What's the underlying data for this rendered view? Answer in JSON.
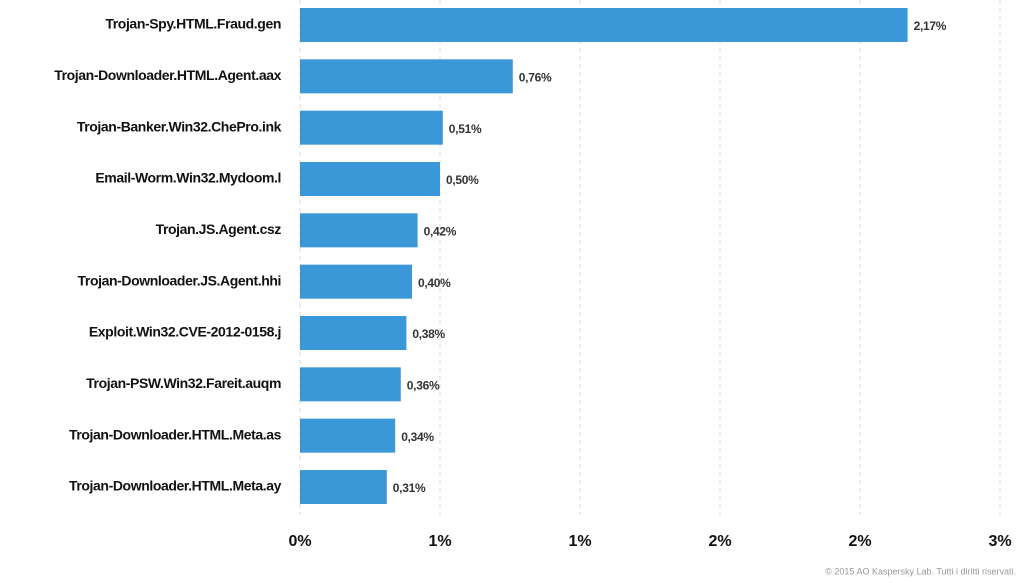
{
  "chart_data": {
    "type": "barh",
    "categories": [
      "Trojan-Spy.HTML.Fraud.gen",
      "Trojan-Downloader.HTML.Agent.aax",
      "Trojan-Banker.Win32.ChePro.ink",
      "Email-Worm.Win32.Mydoom.l",
      "Trojan.JS.Agent.csz",
      "Trojan-Downloader.JS.Agent.hhi",
      "Exploit.Win32.CVE-2012-0158.j",
      "Trojan-PSW.Win32.Fareit.auqm",
      "Trojan-Downloader.HTML.Meta.as",
      "Trojan-Downloader.HTML.Meta.ay"
    ],
    "values": [
      2.17,
      0.76,
      0.51,
      0.5,
      0.42,
      0.4,
      0.38,
      0.36,
      0.34,
      0.31
    ],
    "value_labels": [
      "2,17%",
      "0,76%",
      "0,51%",
      "0,50%",
      "0,42%",
      "0,40%",
      "0,38%",
      "0,36%",
      "0,34%",
      "0,31%"
    ],
    "color": "#3a97d8",
    "xlim": [
      0,
      2.5
    ],
    "xticks": [
      {
        "value": 0,
        "label": "0%"
      },
      {
        "value": 0.5,
        "label": "1%"
      },
      {
        "value": 1,
        "label": "1%"
      },
      {
        "value": 1.5,
        "label": "2%"
      },
      {
        "value": 2,
        "label": "2%"
      },
      {
        "value": 2.5,
        "label": "3%"
      }
    ],
    "grid": true,
    "footer": "© 2015 AO Kaspersky Lab. Tutti i diritti riservati."
  }
}
